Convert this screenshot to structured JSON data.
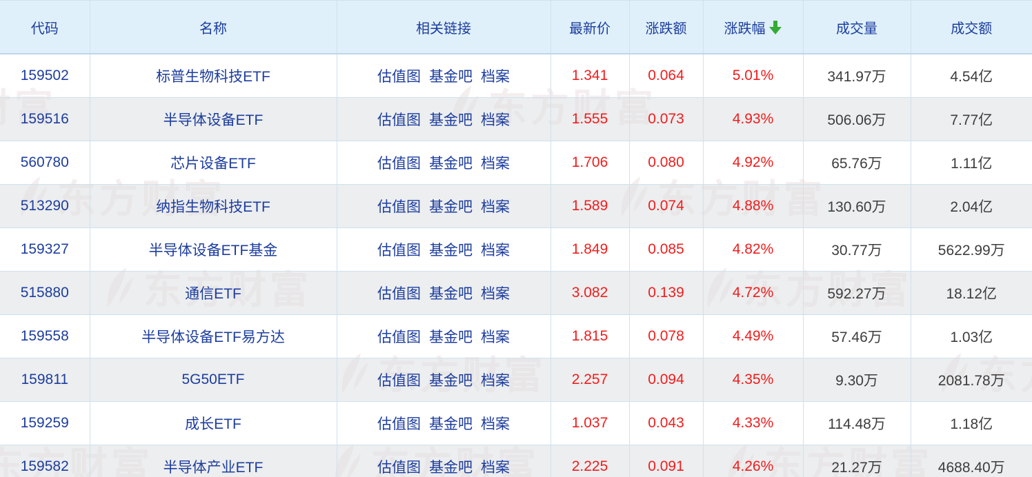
{
  "watermark": {
    "text": "东方财富",
    "color": "#f5eeee"
  },
  "colors": {
    "header_background": "#dff0fa",
    "link_navy": "#1d3d9e",
    "up_red": "#f21c1c",
    "neutral_dark": "#3d3d3d",
    "grid_border": "#cfe1ee",
    "alt_row_gray": "#efefef",
    "sort_arrow_green": "#35ab35"
  },
  "table": {
    "columns": [
      {
        "key": "code",
        "label": "代码"
      },
      {
        "key": "name",
        "label": "名称"
      },
      {
        "key": "links",
        "label": "相关链接"
      },
      {
        "key": "price",
        "label": "最新价"
      },
      {
        "key": "change",
        "label": "涨跌额"
      },
      {
        "key": "pct",
        "label": "涨跌幅",
        "sort": "desc"
      },
      {
        "key": "volume",
        "label": "成交量"
      },
      {
        "key": "turnover",
        "label": "成交额"
      }
    ],
    "link_labels": [
      "估值图",
      "基金吧",
      "档案"
    ],
    "rows": [
      {
        "code": "159502",
        "name": "标普生物科技ETF",
        "price": "1.341",
        "change": "0.064",
        "pct": "5.01%",
        "volume": "341.97万",
        "turnover": "4.54亿"
      },
      {
        "code": "159516",
        "name": "半导体设备ETF",
        "price": "1.555",
        "change": "0.073",
        "pct": "4.93%",
        "volume": "506.06万",
        "turnover": "7.77亿"
      },
      {
        "code": "560780",
        "name": "芯片设备ETF",
        "price": "1.706",
        "change": "0.080",
        "pct": "4.92%",
        "volume": "65.76万",
        "turnover": "1.11亿"
      },
      {
        "code": "513290",
        "name": "纳指生物科技ETF",
        "price": "1.589",
        "change": "0.074",
        "pct": "4.88%",
        "volume": "130.60万",
        "turnover": "2.04亿"
      },
      {
        "code": "159327",
        "name": "半导体设备ETF基金",
        "price": "1.849",
        "change": "0.085",
        "pct": "4.82%",
        "volume": "30.77万",
        "turnover": "5622.99万"
      },
      {
        "code": "515880",
        "name": "通信ETF",
        "price": "3.082",
        "change": "0.139",
        "pct": "4.72%",
        "volume": "592.27万",
        "turnover": "18.12亿"
      },
      {
        "code": "159558",
        "name": "半导体设备ETF易方达",
        "price": "1.815",
        "change": "0.078",
        "pct": "4.49%",
        "volume": "57.46万",
        "turnover": "1.03亿"
      },
      {
        "code": "159811",
        "name": "5G50ETF",
        "price": "2.257",
        "change": "0.094",
        "pct": "4.35%",
        "volume": "9.30万",
        "turnover": "2081.78万"
      },
      {
        "code": "159259",
        "name": "成长ETF",
        "price": "1.037",
        "change": "0.043",
        "pct": "4.33%",
        "volume": "114.48万",
        "turnover": "1.18亿"
      },
      {
        "code": "159582",
        "name": "半导体产业ETF",
        "price": "2.225",
        "change": "0.091",
        "pct": "4.26%",
        "volume": "21.27万",
        "turnover": "4688.40万"
      }
    ]
  }
}
